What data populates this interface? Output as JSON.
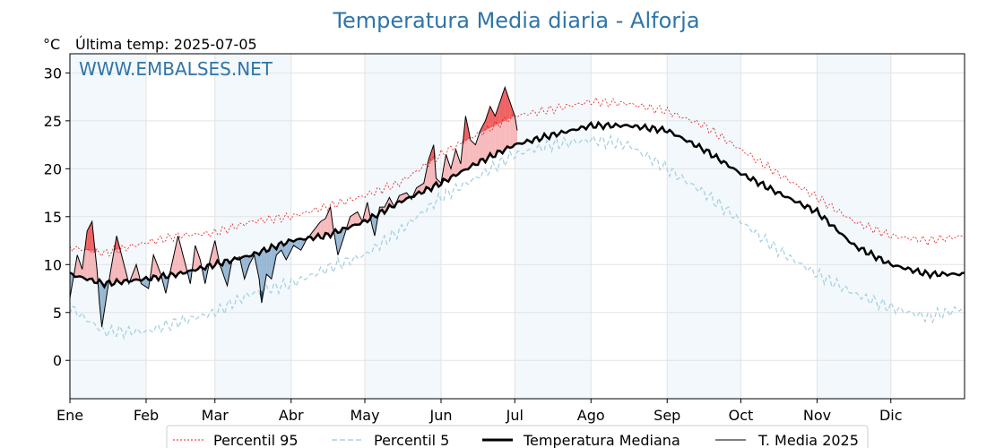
{
  "header": {
    "title": "Temperatura Media diaria - Alforja",
    "unit": "°C",
    "last_temp": "Última temp: 2025-07-05",
    "watermark": "WWW.EMBALSES.NET"
  },
  "chart_data": {
    "type": "line",
    "x_axis": {
      "type": "day_of_year",
      "range": [
        1,
        365
      ],
      "ticks": [
        {
          "day": 1,
          "label": "Ene"
        },
        {
          "day": 32,
          "label": "Feb"
        },
        {
          "day": 60,
          "label": "Mar"
        },
        {
          "day": 91,
          "label": "Abr"
        },
        {
          "day": 121,
          "label": "May"
        },
        {
          "day": 152,
          "label": "Jun"
        },
        {
          "day": 182,
          "label": "Jul"
        },
        {
          "day": 213,
          "label": "Ago"
        },
        {
          "day": 244,
          "label": "Sep"
        },
        {
          "day": 274,
          "label": "Oct"
        },
        {
          "day": 305,
          "label": "Nov"
        },
        {
          "day": 335,
          "label": "Dic"
        }
      ]
    },
    "y_axis": {
      "range": [
        -4,
        32
      ],
      "ticks": [
        0,
        5,
        10,
        15,
        20,
        25,
        30
      ]
    },
    "grid": true,
    "shaded_months": [
      "Ene",
      "Mar",
      "May",
      "Jul",
      "Sep",
      "Nov"
    ],
    "legend": {
      "position": "bottom",
      "entries": [
        "Percentil 95",
        "Percentil 5",
        "Temperatura Mediana",
        "T. Media 2025"
      ]
    },
    "series": [
      {
        "name": "Percentil 95",
        "color": "#e8191a",
        "style": "dotted",
        "points": [
          [
            1,
            11.8
          ],
          [
            15,
            11.2
          ],
          [
            32,
            12.3
          ],
          [
            45,
            13.0
          ],
          [
            60,
            13.3
          ],
          [
            75,
            14.5
          ],
          [
            91,
            15.0
          ],
          [
            105,
            16.0
          ],
          [
            121,
            17.2
          ],
          [
            135,
            18.5
          ],
          [
            152,
            21.5
          ],
          [
            166,
            23.5
          ],
          [
            182,
            25.5
          ],
          [
            197,
            26.2
          ],
          [
            213,
            27.0
          ],
          [
            228,
            26.8
          ],
          [
            244,
            26.0
          ],
          [
            259,
            24.5
          ],
          [
            274,
            22.0
          ],
          [
            289,
            19.5
          ],
          [
            305,
            17.0
          ],
          [
            320,
            14.5
          ],
          [
            335,
            13.0
          ],
          [
            350,
            12.5
          ],
          [
            365,
            13.0
          ]
        ]
      },
      {
        "name": "Percentil 5",
        "color": "#a8d0e2",
        "style": "dashed",
        "points": [
          [
            1,
            5.5
          ],
          [
            15,
            3.0
          ],
          [
            32,
            3.0
          ],
          [
            45,
            4.0
          ],
          [
            60,
            5.0
          ],
          [
            75,
            7.0
          ],
          [
            91,
            8.0
          ],
          [
            105,
            9.5
          ],
          [
            121,
            11.0
          ],
          [
            135,
            13.5
          ],
          [
            152,
            17.0
          ],
          [
            166,
            19.0
          ],
          [
            182,
            21.5
          ],
          [
            197,
            22.5
          ],
          [
            213,
            23.0
          ],
          [
            228,
            22.5
          ],
          [
            244,
            20.0
          ],
          [
            259,
            17.5
          ],
          [
            274,
            14.5
          ],
          [
            289,
            11.5
          ],
          [
            305,
            9.0
          ],
          [
            320,
            7.0
          ],
          [
            335,
            5.5
          ],
          [
            350,
            4.5
          ],
          [
            365,
            5.5
          ]
        ]
      },
      {
        "name": "Temperatura Mediana",
        "color": "#000000",
        "style": "solid-thick",
        "points": [
          [
            1,
            9.0
          ],
          [
            15,
            8.0
          ],
          [
            32,
            8.5
          ],
          [
            45,
            9.0
          ],
          [
            60,
            10.0
          ],
          [
            75,
            11.0
          ],
          [
            91,
            12.5
          ],
          [
            105,
            13.0
          ],
          [
            121,
            14.5
          ],
          [
            135,
            16.5
          ],
          [
            152,
            18.5
          ],
          [
            166,
            20.5
          ],
          [
            182,
            22.5
          ],
          [
            197,
            23.5
          ],
          [
            213,
            24.5
          ],
          [
            228,
            24.5
          ],
          [
            244,
            24.0
          ],
          [
            259,
            22.0
          ],
          [
            274,
            19.5
          ],
          [
            289,
            17.5
          ],
          [
            305,
            15.5
          ],
          [
            320,
            12.0
          ],
          [
            335,
            10.0
          ],
          [
            350,
            9.0
          ],
          [
            365,
            9.0
          ]
        ]
      },
      {
        "name": "T. Media 2025",
        "color": "#000000",
        "style": "solid-thin",
        "points": [
          [
            1,
            6.5
          ],
          [
            4,
            11.0
          ],
          [
            6,
            9.5
          ],
          [
            8,
            13.5
          ],
          [
            10,
            14.5
          ],
          [
            12,
            9.5
          ],
          [
            13,
            6.0
          ],
          [
            14,
            3.5
          ],
          [
            17,
            8.5
          ],
          [
            20,
            13.0
          ],
          [
            22,
            11.0
          ],
          [
            25,
            8.0
          ],
          [
            28,
            10.0
          ],
          [
            30,
            8.0
          ],
          [
            33,
            7.5
          ],
          [
            35,
            11.0
          ],
          [
            38,
            9.0
          ],
          [
            40,
            7.0
          ],
          [
            42,
            9.5
          ],
          [
            45,
            13.0
          ],
          [
            47,
            11.0
          ],
          [
            50,
            8.0
          ],
          [
            52,
            12.0
          ],
          [
            54,
            10.5
          ],
          [
            56,
            8.0
          ],
          [
            58,
            10.5
          ],
          [
            60,
            12.5
          ],
          [
            62,
            10.0
          ],
          [
            65,
            7.8
          ],
          [
            67,
            10.5
          ],
          [
            70,
            10.8
          ],
          [
            72,
            8.5
          ],
          [
            74,
            10.0
          ],
          [
            76,
            11.0
          ],
          [
            78,
            8.5
          ],
          [
            79,
            6.0
          ],
          [
            81,
            9.0
          ],
          [
            83,
            8.5
          ],
          [
            85,
            11.0
          ],
          [
            87,
            11.5
          ],
          [
            89,
            10.5
          ],
          [
            92,
            12.0
          ],
          [
            95,
            11.5
          ],
          [
            97,
            12.5
          ],
          [
            100,
            13.5
          ],
          [
            103,
            14.5
          ],
          [
            105,
            14.8
          ],
          [
            107,
            16.0
          ],
          [
            108,
            14.0
          ],
          [
            110,
            11.0
          ],
          [
            112,
            12.5
          ],
          [
            115,
            15.0
          ],
          [
            118,
            15.5
          ],
          [
            120,
            14.5
          ],
          [
            122,
            16.5
          ],
          [
            124,
            14.0
          ],
          [
            125,
            13.0
          ],
          [
            127,
            16.0
          ],
          [
            129,
            16.0
          ],
          [
            131,
            17.0
          ],
          [
            133,
            16.0
          ],
          [
            135,
            17.2
          ],
          [
            138,
            17.5
          ],
          [
            140,
            16.8
          ],
          [
            142,
            18.0
          ],
          [
            145,
            18.5
          ],
          [
            147,
            21.0
          ],
          [
            149,
            22.5
          ],
          [
            150,
            19.0
          ],
          [
            152,
            18.5
          ],
          [
            154,
            21.5
          ],
          [
            156,
            20.0
          ],
          [
            158,
            22.0
          ],
          [
            160,
            20.5
          ],
          [
            162,
            25.5
          ],
          [
            164,
            23.0
          ],
          [
            166,
            22.5
          ],
          [
            168,
            24.0
          ],
          [
            170,
            25.0
          ],
          [
            172,
            26.5
          ],
          [
            174,
            25.5
          ],
          [
            176,
            27.0
          ],
          [
            178,
            28.5
          ],
          [
            180,
            27.0
          ],
          [
            182,
            25.5
          ],
          [
            183,
            24.0
          ]
        ]
      }
    ]
  }
}
